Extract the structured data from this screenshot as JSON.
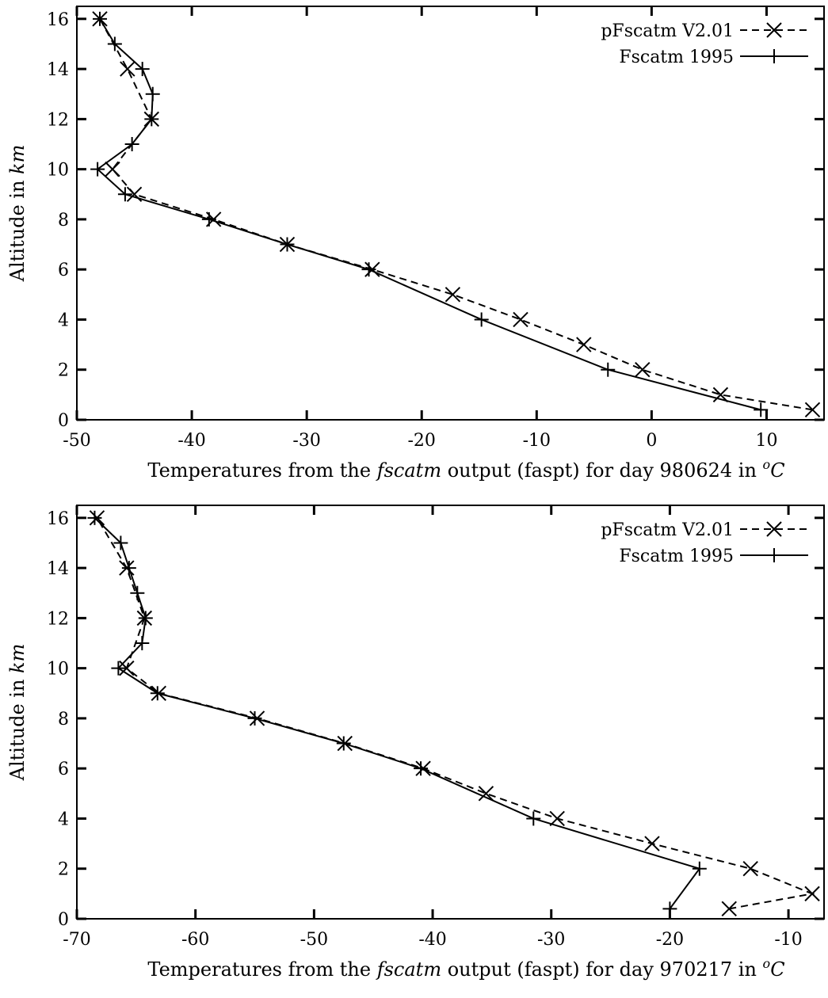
{
  "chart_data": [
    {
      "type": "line",
      "xlabel": {
        "prefix": "Temperatures from the ",
        "italic": "fscatm",
        "middle": " output (faspt) for day 980624 in ",
        "unit_sup": "o",
        "unit": "C"
      },
      "ylabel": {
        "prefix": "Altitude in ",
        "italic": "km"
      },
      "xlim": [
        -50,
        15
      ],
      "ylim": [
        0,
        16.5
      ],
      "xticks": [
        -50,
        -40,
        -30,
        -20,
        -10,
        0,
        10
      ],
      "yticks": [
        0,
        2,
        4,
        6,
        8,
        10,
        12,
        14,
        16
      ],
      "legend_position": "top-right",
      "series": [
        {
          "name": "pFscatm V2.01",
          "style": "dashed",
          "marker": "x",
          "x": [
            14,
            6,
            -0.8,
            -5.9,
            -11.4,
            -17.3,
            -24.3,
            -31.7,
            -38.1,
            -45,
            -46.9,
            -43.5,
            -45.6,
            -48
          ],
          "y": [
            0.4,
            1,
            2,
            3,
            4,
            5,
            6,
            7,
            8,
            9,
            10,
            12,
            14,
            16
          ]
        },
        {
          "name": "Fscatm 1995",
          "style": "solid",
          "marker": "+",
          "x": [
            9.5,
            -3.8,
            -14.8,
            -24.6,
            -31.7,
            -38.5,
            -45.8,
            -48.2,
            -45.2,
            -43.5,
            -43.4,
            -44.3,
            -46.7,
            -48
          ],
          "y": [
            0.4,
            2,
            4,
            6,
            7,
            8,
            9,
            10,
            11,
            12,
            13,
            14,
            15,
            16
          ]
        }
      ]
    },
    {
      "type": "line",
      "xlabel": {
        "prefix": "Temperatures from the ",
        "italic": "fscatm",
        "middle": " output (faspt) for day 970217 in ",
        "unit_sup": "o",
        "unit": "C"
      },
      "ylabel": {
        "prefix": "Altitude in ",
        "italic": "km"
      },
      "xlim": [
        -70,
        -7
      ],
      "ylim": [
        0,
        16.5
      ],
      "xticks": [
        -70,
        -60,
        -50,
        -40,
        -30,
        -20,
        -10
      ],
      "yticks": [
        0,
        2,
        4,
        6,
        8,
        10,
        12,
        14,
        16
      ],
      "legend_position": "top-right",
      "series": [
        {
          "name": "pFscatm V2.01",
          "style": "dashed",
          "marker": "x",
          "x": [
            -15,
            -8,
            -13.2,
            -21.5,
            -29.5,
            -35.5,
            -40.8,
            -47.4,
            -54.8,
            -63.1,
            -65.8,
            -64.3,
            -65.8,
            -68.3
          ],
          "y": [
            0.4,
            1,
            2,
            3,
            4,
            5,
            6,
            7,
            8,
            9,
            10,
            12,
            14,
            16
          ]
        },
        {
          "name": "Fscatm 1995",
          "style": "solid",
          "marker": "+",
          "x": [
            -20,
            -17.5,
            -31.5,
            -41,
            -47.5,
            -55,
            -63.2,
            -66.5,
            -64.5,
            -64.2,
            -64.9,
            -65.6,
            -66.3,
            -68.5
          ],
          "y": [
            0.4,
            2,
            4,
            6,
            7,
            8,
            9,
            10,
            11,
            12,
            13,
            14,
            15,
            16
          ]
        }
      ]
    }
  ]
}
